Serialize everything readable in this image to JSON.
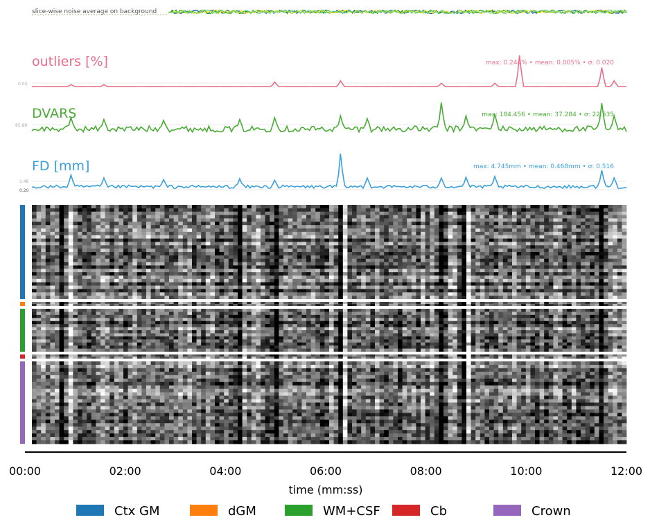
{
  "chart_data": {
    "type": "carpetplot",
    "noise_panel": {
      "label": "slice-wise noise average on background",
      "colors": [
        "#1f5fa8",
        "#2ca02c",
        "#e6e615",
        "#6fcf7f"
      ]
    },
    "panels": [
      {
        "key": "outliers",
        "title": "outliers [%]",
        "color": "#e8708a",
        "ytick": "0.03",
        "stats": "max: 0.244% • mean: 0.005% • σ: 0.020",
        "max": 0.244,
        "mean": 0.005,
        "spikes": [
          [
            0.82,
            0.244
          ],
          [
            0.065,
            0.02
          ],
          [
            0.12,
            0.02
          ],
          [
            0.41,
            0.04
          ],
          [
            0.52,
            0.05
          ],
          [
            0.69,
            0.03
          ],
          [
            0.78,
            0.03
          ],
          [
            0.96,
            0.15
          ],
          [
            0.98,
            0.05
          ]
        ]
      },
      {
        "key": "dvars",
        "title": "DVARS",
        "color": "#4aab35",
        "ytick": "85.89",
        "stats": "max: 184.456 • mean: 37.284 • σ: 22.535",
        "max": 184.456,
        "mean": 37.284,
        "spikes": [
          [
            0.065,
            100
          ],
          [
            0.12,
            90
          ],
          [
            0.22,
            85
          ],
          [
            0.35,
            90
          ],
          [
            0.41,
            100
          ],
          [
            0.52,
            110
          ],
          [
            0.565,
            95
          ],
          [
            0.69,
            184
          ],
          [
            0.73,
            110
          ],
          [
            0.78,
            120
          ],
          [
            0.96,
            180
          ],
          [
            0.98,
            110
          ]
        ]
      },
      {
        "key": "fd",
        "title": "FD [mm]",
        "color": "#3aa0dc",
        "ytick_top": "1.48",
        "ytick_bottom": "0.20",
        "stats": "max: 4.745mm • mean: 0.468mm • σ: 0.516",
        "max": 4.745,
        "mean": 0.468,
        "spikes": [
          [
            0.065,
            2.0
          ],
          [
            0.12,
            1.6
          ],
          [
            0.22,
            1.4
          ],
          [
            0.35,
            1.5
          ],
          [
            0.41,
            1.3
          ],
          [
            0.52,
            4.745
          ],
          [
            0.565,
            1.6
          ],
          [
            0.69,
            1.6
          ],
          [
            0.73,
            1.7
          ],
          [
            0.78,
            1.8
          ],
          [
            0.96,
            2.6
          ],
          [
            0.98,
            1.6
          ]
        ]
      }
    ],
    "carpet": {
      "segments": [
        {
          "name": "Ctx GM",
          "color": "#1f77b4",
          "rows": 56
        },
        {
          "name": "dGM",
          "color": "#ff7f0e",
          "rows": 4
        },
        {
          "name": "WM+CSF",
          "color": "#2ca02c",
          "rows": 27
        },
        {
          "name": "Cb",
          "color": "#d62728",
          "rows": 3
        },
        {
          "name": "Crown",
          "color": "#9467bd",
          "rows": 48
        }
      ]
    },
    "xaxis": {
      "label": "time (mm:ss)",
      "ticks": [
        "00:00",
        "02:00",
        "04:00",
        "06:00",
        "08:00",
        "10:00",
        "12:00"
      ],
      "range_seconds": [
        0,
        720
      ]
    },
    "legend": {
      "placement": "bottom-center",
      "entries": [
        {
          "name": "Ctx GM",
          "color": "#1f77b4"
        },
        {
          "name": "dGM",
          "color": "#ff7f0e"
        },
        {
          "name": "WM+CSF",
          "color": "#2ca02c"
        },
        {
          "name": "Cb",
          "color": "#d62728"
        },
        {
          "name": "Crown",
          "color": "#9467bd"
        }
      ]
    }
  }
}
